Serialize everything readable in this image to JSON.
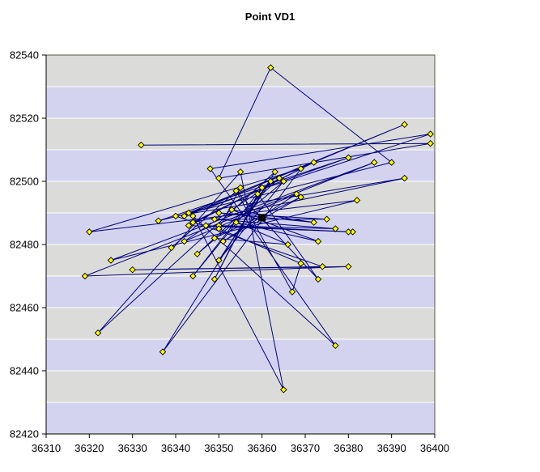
{
  "chart_data": {
    "type": "line",
    "title": "Point VD1",
    "xlim": [
      36310,
      36400
    ],
    "ylim": [
      82420,
      82540
    ],
    "x_ticks": [
      36310,
      36320,
      36330,
      36340,
      36350,
      36360,
      36370,
      36380,
      36390,
      36400
    ],
    "y_ticks": [
      82420,
      82440,
      82460,
      82480,
      82500,
      82520,
      82540
    ],
    "band_unit": 10,
    "legend": "none",
    "grid": "horizontal-white",
    "marker": "yellow-diamond",
    "mean_point": [
      36360,
      82488.5
    ],
    "points": [
      [
        36332,
        82511.5
      ],
      [
        36399,
        82512
      ],
      [
        36350,
        82501
      ],
      [
        36362,
        82536
      ],
      [
        36390,
        82506
      ],
      [
        36336,
        82487.5
      ],
      [
        36380,
        82507.5
      ],
      [
        36342,
        82489
      ],
      [
        36393,
        82518
      ],
      [
        36343,
        82490
      ],
      [
        36399,
        82515
      ],
      [
        36348,
        82504
      ],
      [
        36377,
        82448
      ],
      [
        36344,
        82489
      ],
      [
        36365,
        82434
      ],
      [
        36355,
        82503
      ],
      [
        36322,
        82452
      ],
      [
        36363,
        82503
      ],
      [
        36337,
        82446
      ],
      [
        36369,
        82504
      ],
      [
        36320,
        82484
      ],
      [
        36382,
        82494
      ],
      [
        36325,
        82475
      ],
      [
        36386,
        82506
      ],
      [
        36319,
        82470
      ],
      [
        36380,
        82473
      ],
      [
        36330,
        82472
      ],
      [
        36374,
        82473
      ],
      [
        36340,
        82489
      ],
      [
        36393,
        82501
      ],
      [
        36344,
        82487
      ],
      [
        36372,
        82506
      ],
      [
        36343,
        82486
      ],
      [
        36381,
        82484
      ],
      [
        36347,
        82486
      ],
      [
        36380,
        82484
      ],
      [
        36350,
        82486
      ],
      [
        36377,
        82485
      ],
      [
        36349,
        82488
      ],
      [
        36375,
        82488
      ],
      [
        36350,
        82490
      ],
      [
        36372,
        82487
      ],
      [
        36353,
        82491
      ],
      [
        36373,
        82481
      ],
      [
        36354,
        82487
      ],
      [
        36366,
        82480
      ],
      [
        36349,
        82482
      ],
      [
        36369,
        82495
      ],
      [
        36351,
        82481
      ],
      [
        36368,
        82496
      ],
      [
        36342,
        82481
      ],
      [
        36364,
        82501
      ],
      [
        36345,
        82477
      ],
      [
        36365,
        82500
      ],
      [
        36350,
        82475
      ],
      [
        36362,
        82500
      ],
      [
        36344,
        82470
      ],
      [
        36360,
        82498
      ],
      [
        36349,
        82469
      ],
      [
        36359,
        82496
      ],
      [
        36373,
        82469
      ],
      [
        36354,
        82497
      ],
      [
        36367,
        82465
      ],
      [
        36369,
        82474
      ],
      [
        36350,
        82485
      ],
      [
        36355,
        82498
      ],
      [
        36339,
        82479
      ]
    ],
    "colors": {
      "line": "#000080",
      "marker_fill": "#FFFF00",
      "marker_stroke": "#000000",
      "mean_marker": "#000000",
      "band_a": "#DBDBD9",
      "band_b": "#D3D3EF",
      "gridline": "#FFFFFF",
      "plot_border": "#55553F",
      "axis": "#000000",
      "label": "#000000",
      "background": "#FFFFFF"
    }
  }
}
